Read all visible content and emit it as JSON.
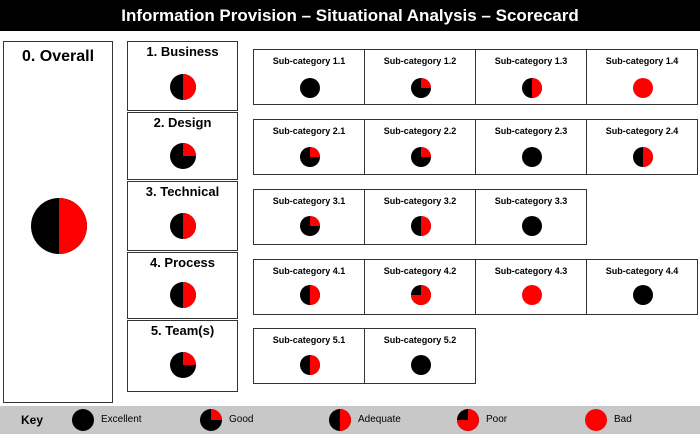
{
  "header": {
    "title": "Information Provision – Situational Analysis – Scorecard"
  },
  "colors": {
    "excellent": "#000000",
    "bad": "#ff0000",
    "header_bg": "#000000",
    "key_bg": "#c8c8c8"
  },
  "overall": {
    "label": "0. Overall",
    "rating": "adequate"
  },
  "categories": [
    {
      "label": "1. Business",
      "rating": "adequate",
      "subs": [
        {
          "label": "Sub-category 1.1",
          "rating": "excellent"
        },
        {
          "label": "Sub-category 1.2",
          "rating": "good"
        },
        {
          "label": "Sub-category 1.3",
          "rating": "adequate"
        },
        {
          "label": "Sub-category 1.4",
          "rating": "bad"
        }
      ]
    },
    {
      "label": "2. Design",
      "rating": "good",
      "subs": [
        {
          "label": "Sub-category 2.1",
          "rating": "good"
        },
        {
          "label": "Sub-category 2.2",
          "rating": "good"
        },
        {
          "label": "Sub-category 2.3",
          "rating": "excellent"
        },
        {
          "label": "Sub-category 2.4",
          "rating": "adequate"
        }
      ]
    },
    {
      "label": "3. Technical",
      "rating": "adequate",
      "subs": [
        {
          "label": "Sub-category 3.1",
          "rating": "good"
        },
        {
          "label": "Sub-category 3.2",
          "rating": "adequate"
        },
        {
          "label": "Sub-category 3.3",
          "rating": "excellent"
        }
      ]
    },
    {
      "label": "4. Process",
      "rating": "adequate",
      "subs": [
        {
          "label": "Sub-category 4.1",
          "rating": "adequate"
        },
        {
          "label": "Sub-category 4.2",
          "rating": "poor"
        },
        {
          "label": "Sub-category 4.3",
          "rating": "bad"
        },
        {
          "label": "Sub-category 4.4",
          "rating": "excellent"
        }
      ]
    },
    {
      "label": "5. Team(s)",
      "rating": "good",
      "subs": [
        {
          "label": "Sub-category 5.1",
          "rating": "adequate"
        },
        {
          "label": "Sub-category 5.2",
          "rating": "excellent"
        }
      ]
    }
  ],
  "key": {
    "title": "Key",
    "items": [
      {
        "label": "Excellent",
        "rating": "excellent"
      },
      {
        "label": "Good",
        "rating": "good"
      },
      {
        "label": "Adequate",
        "rating": "adequate"
      },
      {
        "label": "Poor",
        "rating": "poor"
      },
      {
        "label": "Bad",
        "rating": "bad"
      }
    ]
  },
  "ratings": {
    "excellent": {
      "red_fraction": 0
    },
    "good": {
      "red_fraction": 0.25
    },
    "adequate": {
      "red_fraction": 0.5
    },
    "poor": {
      "red_fraction": 0.75
    },
    "bad": {
      "red_fraction": 1
    }
  }
}
